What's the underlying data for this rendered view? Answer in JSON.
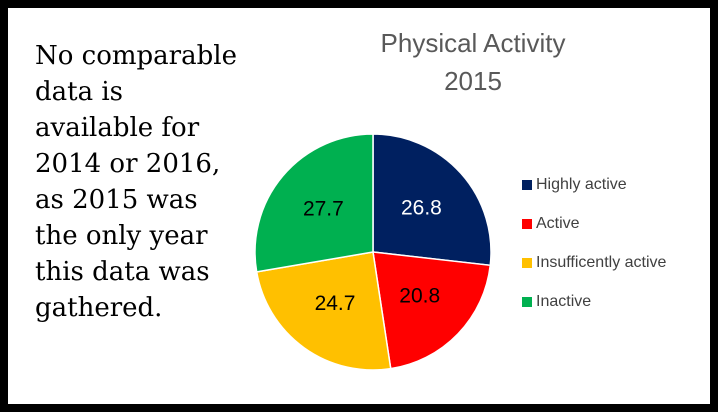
{
  "chart_data": {
    "type": "pie",
    "title": "Physical Activity 2015",
    "annotation": [
      "No comparable",
      "data is",
      "available for",
      "2014 or 2016,",
      "as 2015 was",
      "the only year",
      "this data was",
      "gathered."
    ],
    "categories": [
      "Highly active",
      "Active",
      "Insufficently active",
      "Inactive"
    ],
    "values": [
      26.8,
      20.8,
      24.7,
      27.7
    ],
    "colors": [
      "#002060",
      "#ff0000",
      "#ffc000",
      "#00b050"
    ],
    "label_colors": [
      "#ffffff",
      "#000000",
      "#000000",
      "#000000"
    ],
    "legend": "right"
  }
}
